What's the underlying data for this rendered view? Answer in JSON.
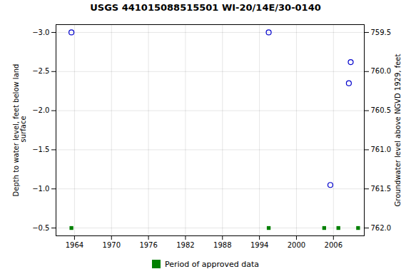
{
  "chart_data": {
    "type": "scatter",
    "title": "USGS 441015088515501 WI-20/14E/30-0140",
    "ylabel": "Depth to water level, feet below land\n surface",
    "y2label": "Groundwater level above NGVD 1929, feet",
    "xlim": [
      1961,
      2011
    ],
    "ylim": [
      -0.4,
      -3.1
    ],
    "xticks": [
      1964,
      1970,
      1976,
      1982,
      1988,
      1994,
      2000,
      2006
    ],
    "yticks": [
      {
        "value": -0.5,
        "label": "−0.5"
      },
      {
        "value": -1.0,
        "label": "−1.0"
      },
      {
        "value": -1.5,
        "label": "−1.5"
      },
      {
        "value": -2.0,
        "label": "−2.0"
      },
      {
        "value": -2.5,
        "label": "−2.5"
      },
      {
        "value": -3.0,
        "label": "−3.0"
      }
    ],
    "y2lim": [
      762.1,
      759.4
    ],
    "y2ticks": [
      {
        "value": 762.0,
        "label": "762.0"
      },
      {
        "value": 761.5,
        "label": "761.5"
      },
      {
        "value": 761.0,
        "label": "761.0"
      },
      {
        "value": 760.5,
        "label": "760.5"
      },
      {
        "value": 760.0,
        "label": "760.0"
      },
      {
        "value": 759.5,
        "label": "759.5"
      }
    ],
    "grid": true,
    "legend": "bottom",
    "series": [
      {
        "color": "#0000cc",
        "marker": "circle",
        "x": [
          1963.5,
          1995.5,
          2005.5,
          2008.5
        ],
        "values": [
          -3.0,
          -3.0,
          -1.05,
          -2.35
        ]
      },
      {
        "color": "#0000cc",
        "marker": "circle",
        "x": [
          2008.8
        ],
        "values": [
          -2.62
        ]
      },
      {
        "name": "Period of approved data",
        "color": "#008000",
        "marker": "square",
        "x": [
          1963.5,
          1995.5,
          2004.5,
          2006.8,
          2010.0
        ],
        "values": [
          -0.5,
          -0.5,
          -0.5,
          -0.5,
          -0.5
        ]
      }
    ]
  }
}
